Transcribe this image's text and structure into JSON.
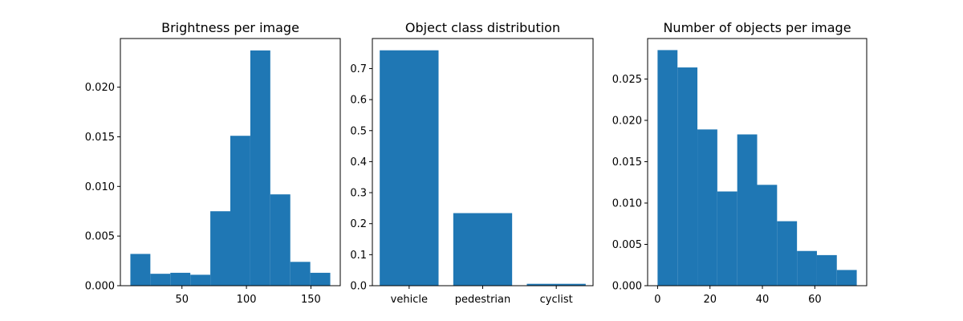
{
  "chart_data": [
    {
      "type": "bar",
      "title": "Brightness per image",
      "xlabel": "",
      "ylabel": "",
      "bin_edges": [
        10,
        25.5,
        41,
        56.5,
        72,
        87.5,
        103,
        118.5,
        134,
        149.5,
        165
      ],
      "values": [
        0.0032,
        0.0012,
        0.0013,
        0.0011,
        0.0075,
        0.0151,
        0.0237,
        0.0092,
        0.0024,
        0.0013
      ],
      "xlim": [
        2.25,
        172.75
      ],
      "ylim": [
        0,
        0.0249
      ],
      "xticks": [
        50,
        100,
        150
      ],
      "xtick_labels": [
        "50",
        "100",
        "150"
      ],
      "yticks": [
        0,
        0.005,
        0.01,
        0.015,
        0.02
      ],
      "ytick_labels": [
        "0.000",
        "0.005",
        "0.010",
        "0.015",
        "0.020"
      ]
    },
    {
      "type": "bar",
      "title": "Object class distribution",
      "xlabel": "",
      "ylabel": "",
      "categories": [
        "vehicle",
        "pedestrian",
        "cyclist"
      ],
      "values": [
        0.759,
        0.234,
        0.006
      ],
      "ylim": [
        0,
        0.797
      ],
      "yticks": [
        0,
        0.1,
        0.2,
        0.3,
        0.4,
        0.5,
        0.6,
        0.7
      ],
      "ytick_labels": [
        "0.0",
        "0.1",
        "0.2",
        "0.3",
        "0.4",
        "0.5",
        "0.6",
        "0.7"
      ]
    },
    {
      "type": "bar",
      "title": "Number of objects per image",
      "xlabel": "",
      "ylabel": "",
      "bin_edges": [
        0,
        7.6,
        15.2,
        22.8,
        30.4,
        38,
        45.6,
        53.2,
        60.8,
        68.4,
        76
      ],
      "values": [
        0.0285,
        0.0264,
        0.0189,
        0.0114,
        0.0183,
        0.0122,
        0.0078,
        0.0042,
        0.0037,
        0.0019
      ],
      "xlim": [
        -3.8,
        79.8
      ],
      "ylim": [
        0,
        0.0299
      ],
      "xticks": [
        0,
        20,
        40,
        60
      ],
      "xtick_labels": [
        "0",
        "20",
        "40",
        "60"
      ],
      "yticks": [
        0,
        0.005,
        0.01,
        0.015,
        0.02,
        0.025
      ],
      "ytick_labels": [
        "0.000",
        "0.005",
        "0.010",
        "0.015",
        "0.020",
        "0.025"
      ]
    }
  ],
  "colors": {
    "bar": "#1f77b4",
    "axes": "#000000",
    "background": "#ffffff"
  }
}
